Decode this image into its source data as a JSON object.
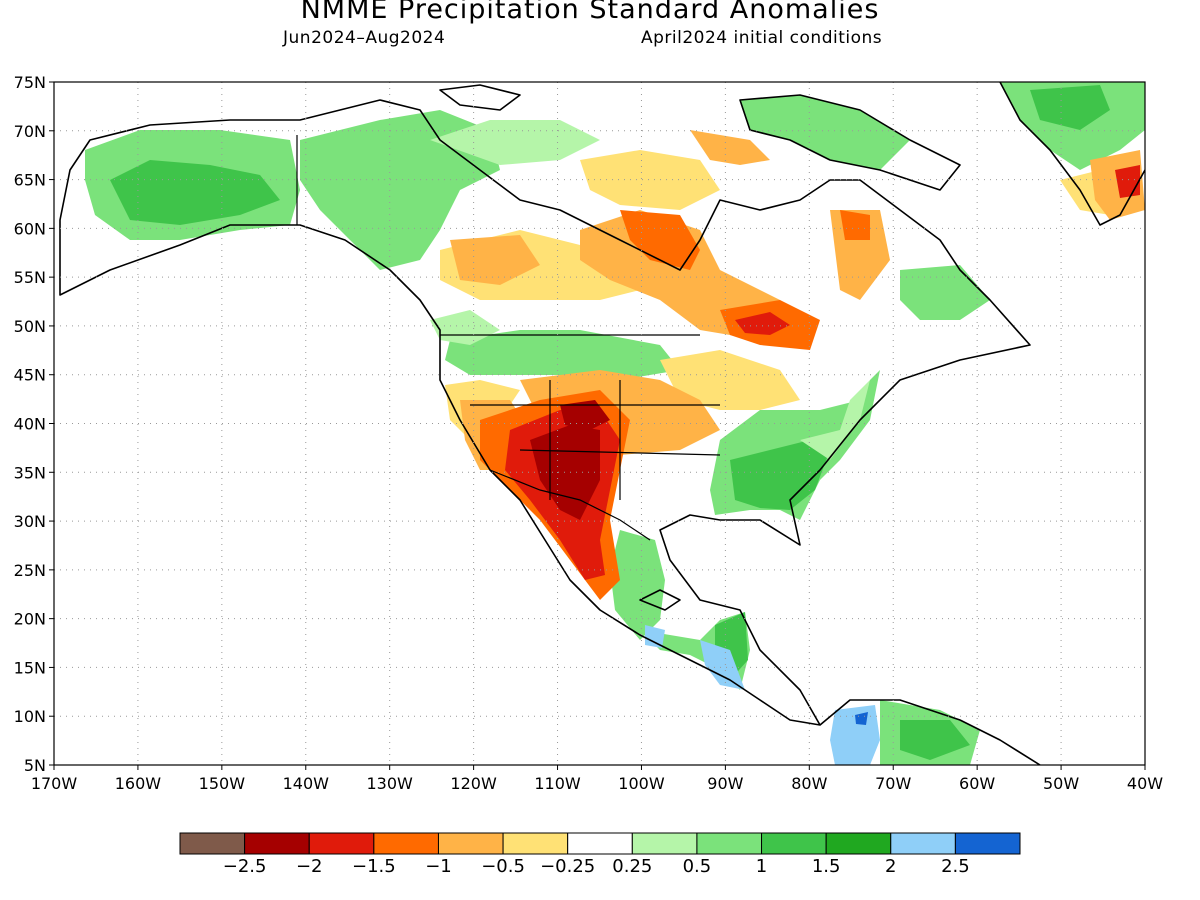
{
  "title": "NMME Precipitation Standard Anomalies",
  "subtitle_left": "Jun2024–Aug2024",
  "subtitle_right": "April2024 initial conditions",
  "map": {
    "lat_labels": [
      "75N",
      "70N",
      "65N",
      "60N",
      "55N",
      "50N",
      "45N",
      "40N",
      "35N",
      "30N",
      "25N",
      "20N",
      "15N",
      "10N",
      "5N"
    ],
    "lat_values": [
      75,
      70,
      65,
      60,
      55,
      50,
      45,
      40,
      35,
      30,
      25,
      20,
      15,
      10,
      5
    ],
    "lon_labels": [
      "170W",
      "160W",
      "150W",
      "140W",
      "130W",
      "120W",
      "110W",
      "100W",
      "90W",
      "80W",
      "70W",
      "60W",
      "50W",
      "40W"
    ],
    "lon_values": [
      -170,
      -160,
      -150,
      -140,
      -130,
      -120,
      -110,
      -100,
      -90,
      -80,
      -70,
      -60,
      -50,
      -40
    ],
    "lon_range": [
      -170,
      -40
    ],
    "lat_range": [
      5,
      75
    ],
    "grid": "dotted"
  },
  "colorbar": {
    "colors": [
      "#7f5a4a",
      "#a50000",
      "#e01b0b",
      "#ff6a00",
      "#ffb347",
      "#ffe175",
      "#ffffff",
      "#b5f5a9",
      "#7be27b",
      "#3fc44a",
      "#20a820",
      "#8fcff8",
      "#1464d2"
    ],
    "labels": [
      "−2.5",
      "−2",
      "−1.5",
      "−1",
      "−0.5",
      "−0.25",
      "0.25",
      "0.5",
      "1",
      "1.5",
      "2",
      "2.5"
    ]
  }
}
